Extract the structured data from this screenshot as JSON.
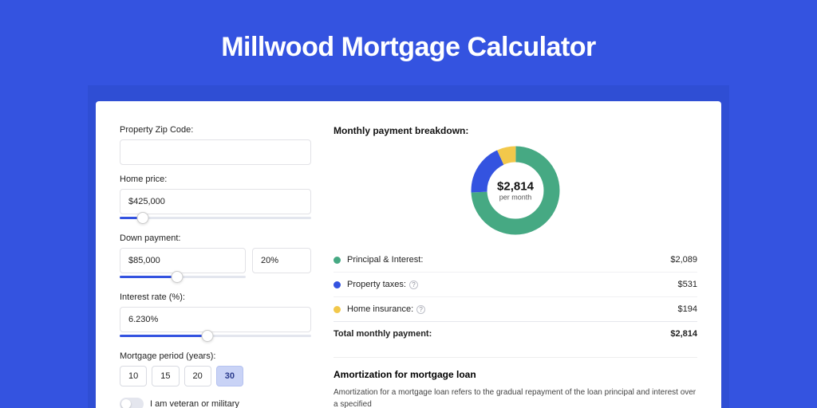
{
  "page": {
    "title": "Millwood Mortgage Calculator",
    "background_color": "#3453e0",
    "inner_background": "#2f4ed4",
    "card_background": "#ffffff"
  },
  "form": {
    "zip": {
      "label": "Property Zip Code:",
      "value": ""
    },
    "home_price": {
      "label": "Home price:",
      "value": "$425,000",
      "slider_percent": 12,
      "slider_rail_percent": 100
    },
    "down_payment": {
      "label": "Down payment:",
      "value": "$85,000",
      "percent_value": "20%",
      "slider_percent": 30,
      "slider_rail_percent": 66
    },
    "interest_rate": {
      "label": "Interest rate (%):",
      "value": "6.230%",
      "slider_percent": 46,
      "slider_rail_percent": 100
    },
    "period": {
      "label": "Mortgage period (years):",
      "options": [
        "10",
        "15",
        "20",
        "30"
      ],
      "active": "30"
    },
    "veteran": {
      "label": "I am veteran or military",
      "value": false
    }
  },
  "breakdown": {
    "title": "Monthly payment breakdown:",
    "center_amount": "$2,814",
    "center_sub": "per month",
    "slices": [
      {
        "key": "principal_interest",
        "color": "#46a983",
        "percent": 74.2
      },
      {
        "key": "property_taxes",
        "color": "#3453e0",
        "percent": 18.9
      },
      {
        "key": "home_insurance",
        "color": "#f2c84b",
        "percent": 6.9
      }
    ],
    "items": [
      {
        "label": "Principal & Interest:",
        "value": "$2,089",
        "color": "#46a983",
        "help": false
      },
      {
        "label": "Property taxes:",
        "value": "$531",
        "color": "#3453e0",
        "help": true
      },
      {
        "label": "Home insurance:",
        "value": "$194",
        "color": "#f2c84b",
        "help": true
      }
    ],
    "total": {
      "label": "Total monthly payment:",
      "value": "$2,814"
    }
  },
  "amortization": {
    "title": "Amortization for mortgage loan",
    "text": "Amortization for a mortgage loan refers to the gradual repayment of the loan principal and interest over a specified"
  }
}
